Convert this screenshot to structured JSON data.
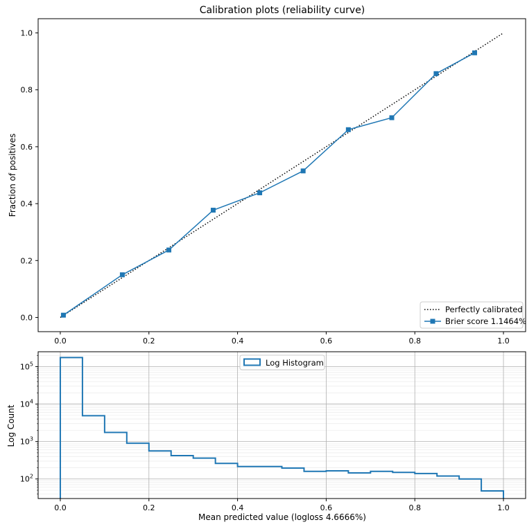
{
  "chart_data": [
    {
      "type": "line",
      "title": "Calibration plots (reliability curve)",
      "xlabel": "",
      "ylabel": "Fraction of positives",
      "xlim": [
        -0.05,
        1.05
      ],
      "ylim": [
        -0.05,
        1.05
      ],
      "xticks": [
        "0.0",
        "0.2",
        "0.4",
        "0.6",
        "0.8",
        "1.0"
      ],
      "yticks": [
        "0.0",
        "0.2",
        "0.4",
        "0.6",
        "0.8",
        "1.0"
      ],
      "grid": false,
      "legend_position": "bottom-right",
      "series": [
        {
          "name": "Perfectly calibrated",
          "style": "dotted",
          "color": "#000000",
          "x": [
            0.0,
            1.0
          ],
          "y": [
            0.0,
            1.0
          ]
        },
        {
          "name": "Brier score 1.1464%",
          "style": "solid-square-markers",
          "color": "#1f77b4",
          "x": [
            0.007,
            0.14,
            0.245,
            0.345,
            0.45,
            0.548,
            0.65,
            0.748,
            0.848,
            0.935
          ],
          "y": [
            0.008,
            0.15,
            0.237,
            0.377,
            0.438,
            0.515,
            0.66,
            0.702,
            0.857,
            0.93
          ]
        }
      ]
    },
    {
      "type": "histogram",
      "title": "",
      "xlabel": "Mean predicted value (logloss 4.6666%)",
      "ylabel": "Log Count",
      "yscale": "log",
      "xlim": [
        -0.05,
        1.05
      ],
      "ylim": [
        30,
        250000
      ],
      "xticks": [
        "0.0",
        "0.2",
        "0.4",
        "0.6",
        "0.8",
        "1.0"
      ],
      "yticks": [
        {
          "base": "10",
          "exp": "2",
          "value": 100
        },
        {
          "base": "10",
          "exp": "3",
          "value": 1000
        },
        {
          "base": "10",
          "exp": "4",
          "value": 10000
        },
        {
          "base": "10",
          "exp": "5",
          "value": 100000
        }
      ],
      "grid": true,
      "legend_position": "top-center",
      "color": "#1f77b4",
      "series": [
        {
          "name": "Log Histogram",
          "bin_edges": [
            0.0,
            0.05,
            0.1,
            0.15,
            0.2,
            0.25,
            0.3,
            0.35,
            0.4,
            0.45,
            0.5,
            0.55,
            0.6,
            0.65,
            0.7,
            0.75,
            0.8,
            0.85,
            0.9,
            0.95,
            1.0
          ],
          "counts": [
            175000,
            4900,
            1750,
            900,
            560,
            420,
            360,
            260,
            215,
            215,
            195,
            160,
            165,
            145,
            160,
            150,
            140,
            120,
            100,
            48
          ]
        }
      ]
    }
  ]
}
